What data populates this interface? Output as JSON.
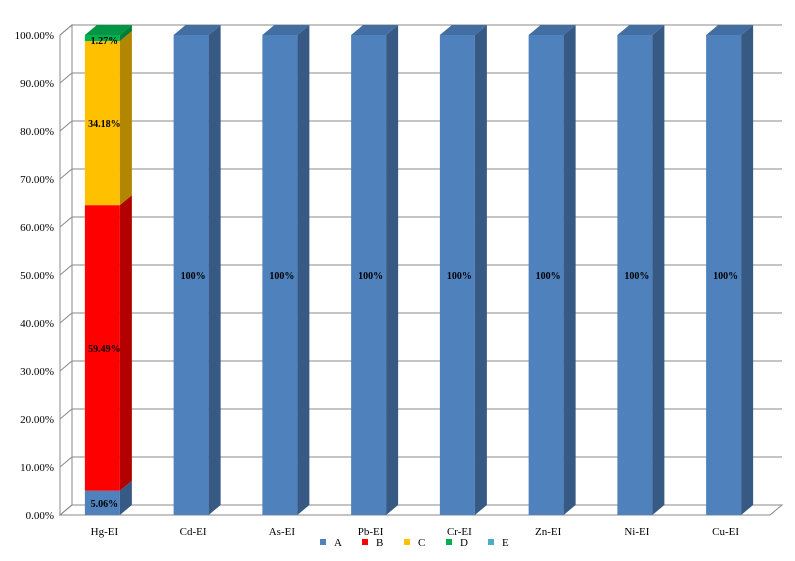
{
  "chart_data": {
    "type": "bar",
    "stacked": true,
    "percent": true,
    "categories": [
      "Hg-EI",
      "Cd-EI",
      "As-EI",
      "Pb-EI",
      "Cr-EI",
      "Zn-EI",
      "Ni-EI",
      "Cu-EI"
    ],
    "series": [
      {
        "name": "A",
        "color": "#4F81BD",
        "values": [
          5.06,
          100,
          100,
          100,
          100,
          100,
          100,
          100
        ],
        "labels": [
          "5.06%",
          "100%",
          "100%",
          "100%",
          "100%",
          "100%",
          "100%",
          "100%"
        ]
      },
      {
        "name": "B",
        "color": "#FF0000",
        "values": [
          59.49,
          0,
          0,
          0,
          0,
          0,
          0,
          0
        ],
        "labels": [
          "59.49%",
          "",
          "",
          "",
          "",
          "",
          "",
          ""
        ]
      },
      {
        "name": "C",
        "color": "#FFC000",
        "values": [
          34.18,
          0,
          0,
          0,
          0,
          0,
          0,
          0
        ],
        "labels": [
          "34.18%",
          "",
          "",
          "",
          "",
          "",
          "",
          ""
        ]
      },
      {
        "name": "D",
        "color": "#00B050",
        "values": [
          1.27,
          0,
          0,
          0,
          0,
          0,
          0,
          0
        ],
        "labels": [
          "1.27%",
          "",
          "",
          "",
          "",
          "",
          "",
          ""
        ]
      },
      {
        "name": "E",
        "color": "#4BACC6",
        "values": [
          0,
          0,
          0,
          0,
          0,
          0,
          0,
          0
        ],
        "labels": [
          "",
          "",
          "",
          "",
          "",
          "",
          "",
          ""
        ]
      }
    ],
    "ylim": [
      0,
      100
    ],
    "yticks": [
      "0.00%",
      "10.00%",
      "20.00%",
      "30.00%",
      "40.00%",
      "50.00%",
      "60.00%",
      "70.00%",
      "80.00%",
      "90.00%",
      "100.00%"
    ],
    "grid": true,
    "legend": "bottom",
    "title": "",
    "xlabel": "",
    "ylabel": ""
  }
}
